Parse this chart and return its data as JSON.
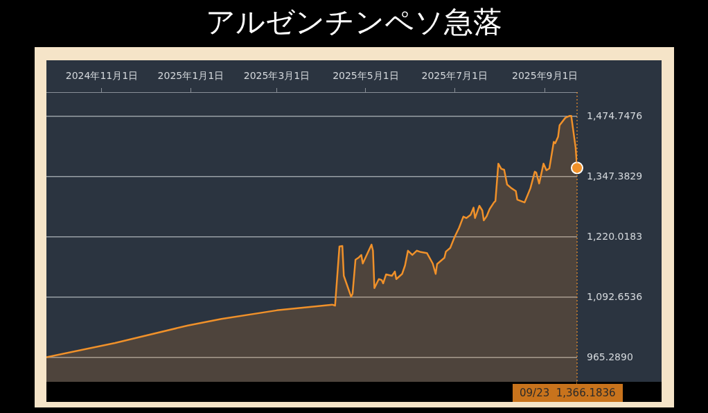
{
  "chart_data": {
    "type": "area",
    "title": "アルゼンチンペソ急落",
    "x": [
      "2024-09-24",
      "2024-11-10",
      "2024-12-30",
      "2025-01-22",
      "2025-03-01",
      "2025-04-08",
      "2025-04-10",
      "2025-04-13",
      "2025-04-15",
      "2025-04-16",
      "2025-04-21",
      "2025-04-22",
      "2025-04-24",
      "2025-04-26",
      "2025-04-28",
      "2025-04-29",
      "2025-05-05",
      "2025-05-06",
      "2025-05-07",
      "2025-05-10",
      "2025-05-12",
      "2025-05-13",
      "2025-05-15",
      "2025-05-19",
      "2025-05-21",
      "2025-05-22",
      "2025-05-26",
      "2025-05-28",
      "2025-05-30",
      "2025-06-02",
      "2025-06-05",
      "2025-06-08",
      "2025-06-12",
      "2025-06-16",
      "2025-06-18",
      "2025-06-19",
      "2025-06-24",
      "2025-06-25",
      "2025-06-28",
      "2025-07-01",
      "2025-07-04",
      "2025-07-07",
      "2025-07-09",
      "2025-07-12",
      "2025-07-14",
      "2025-07-15",
      "2025-07-18",
      "2025-07-20",
      "2025-07-21",
      "2025-07-23",
      "2025-07-25",
      "2025-07-28",
      "2025-07-29",
      "2025-07-31",
      "2025-08-02",
      "2025-08-04",
      "2025-08-06",
      "2025-08-09",
      "2025-08-12",
      "2025-08-13",
      "2025-08-18",
      "2025-08-22",
      "2025-08-25",
      "2025-08-26",
      "2025-08-28",
      "2025-08-31",
      "2025-09-02",
      "2025-09-04",
      "2025-09-07",
      "2025-09-08",
      "2025-09-10",
      "2025-09-11",
      "2025-09-15",
      "2025-09-18",
      "2025-09-19",
      "2025-09-22",
      "2025-09-23"
    ],
    "series": [
      {
        "color": "#f0912a",
        "values": [
          966,
          996,
          1033,
          1047,
          1065,
          1077,
          1075,
          1200,
          1201,
          1138,
          1094,
          1100,
          1172,
          1176,
          1182,
          1164,
          1204,
          1191,
          1112,
          1131,
          1129,
          1122,
          1141,
          1138,
          1147,
          1131,
          1142,
          1160,
          1191,
          1182,
          1191,
          1188,
          1186,
          1164,
          1142,
          1163,
          1176,
          1189,
          1197,
          1220,
          1239,
          1263,
          1260,
          1267,
          1282,
          1260,
          1286,
          1276,
          1255,
          1264,
          1279,
          1293,
          1296,
          1375,
          1364,
          1362,
          1331,
          1323,
          1317,
          1299,
          1293,
          1323,
          1358,
          1356,
          1333,
          1375,
          1361,
          1365,
          1421,
          1418,
          1432,
          1456,
          1472,
          1476,
          1476,
          1409,
          1366
        ]
      }
    ],
    "xlim": [
      "2024-09-24",
      "2025-09-23"
    ],
    "xticks": [
      {
        "value": "2024-11-01",
        "label": "2024年11月1日"
      },
      {
        "value": "2025-01-01",
        "label": "2025年1月1日"
      },
      {
        "value": "2025-03-01",
        "label": "2025年3月1日"
      },
      {
        "value": "2025-05-01",
        "label": "2025年5月1日"
      },
      {
        "value": "2025-07-01",
        "label": "2025年7月1日"
      },
      {
        "value": "2025-09-01",
        "label": "2025年9月1日"
      }
    ],
    "ylim": [
      914,
      1526
    ],
    "yticks": [
      {
        "value": 965.289,
        "label": "965.2890"
      },
      {
        "value": 1092.6536,
        "label": "1,092.6536"
      },
      {
        "value": 1220.0183,
        "label": "1,220.0183"
      },
      {
        "value": 1347.3829,
        "label": "1,347.3829"
      },
      {
        "value": 1474.7476,
        "label": "1,474.7476"
      }
    ],
    "grid": "y",
    "legend": false,
    "marker": "none",
    "line_style": "solid",
    "ref_lines": [
      {
        "axis": "x",
        "value": "2025-09-23",
        "color": "#f0912a",
        "line_style": "dotted"
      }
    ],
    "annotations": [
      "09/23  1,366.1836"
    ]
  }
}
